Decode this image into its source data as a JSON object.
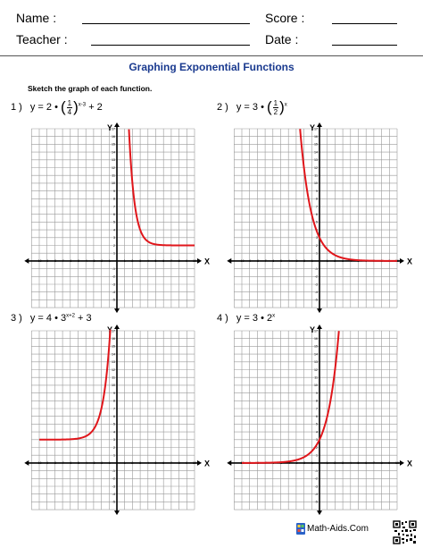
{
  "header": {
    "name_label": "Name :",
    "teacher_label": "Teacher :",
    "score_label": "Score :",
    "date_label": "Date :"
  },
  "title": "Graphing Exponential Functions",
  "instructions": "Sketch the graph of each function.",
  "problems": [
    {
      "number": "1 )",
      "y": "y = 2",
      "dot": "•",
      "frac_num": "1",
      "frac_den": "4",
      "exp": "x-3",
      "tail": "+ 2",
      "graph": {
        "a": 2,
        "b": 0.25,
        "h": 3,
        "k": 2,
        "x_label": "X",
        "y_label": "Y"
      }
    },
    {
      "number": "2 )",
      "y": "y = 3",
      "dot": "•",
      "frac_num": "1",
      "frac_den": "2",
      "exp": "x",
      "tail": "",
      "graph": {
        "a": 3,
        "b": 0.5,
        "h": 0,
        "k": 0,
        "x_label": "X",
        "y_label": "Y"
      }
    },
    {
      "number": "3 )",
      "y": "y = 4",
      "dot": "•",
      "base": "3",
      "exp": "x+2",
      "tail": "+ 3",
      "graph": {
        "a": 4,
        "b": 3,
        "h": -2,
        "k": 3,
        "x_label": "X",
        "y_label": "Y"
      }
    },
    {
      "number": "4 )",
      "y": "y = 3",
      "dot": "•",
      "base": "2",
      "exp": "x",
      "tail": "",
      "graph": {
        "a": 3,
        "b": 2,
        "h": 0,
        "k": 0,
        "x_label": "X",
        "y_label": "Y"
      }
    }
  ],
  "axes": {
    "x_ticks": [
      "-10",
      "-9",
      "-8",
      "-7",
      "-6",
      "-5",
      "-4",
      "-3",
      "-2",
      "-1",
      "1",
      "2",
      "3",
      "4",
      "5",
      "6",
      "7",
      "8",
      "9",
      "10"
    ],
    "y_ticks": [
      "17",
      "16",
      "15",
      "14",
      "13",
      "12",
      "11",
      "10",
      "9",
      "8",
      "7",
      "6",
      "5",
      "4",
      "3",
      "2",
      "1",
      "-1",
      "-2",
      "-3",
      "-4",
      "-5"
    ],
    "curve_color": "#e0161b"
  },
  "footer": {
    "brand": "Math-Aids.Com",
    "logo_icon": "math-aids-logo-icon",
    "qr_icon": "qr-code-icon"
  }
}
